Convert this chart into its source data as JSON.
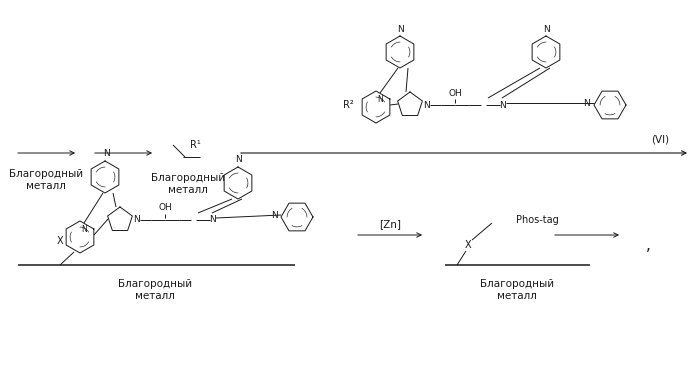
{
  "bg_color": "#ffffff",
  "line_color": "#1a1a1a",
  "text_color": "#1a1a1a",
  "noble_metal": "Благородный\nметалл",
  "VI_label": "(VI)",
  "Zn_label": "[Zn]",
  "comma": ","
}
